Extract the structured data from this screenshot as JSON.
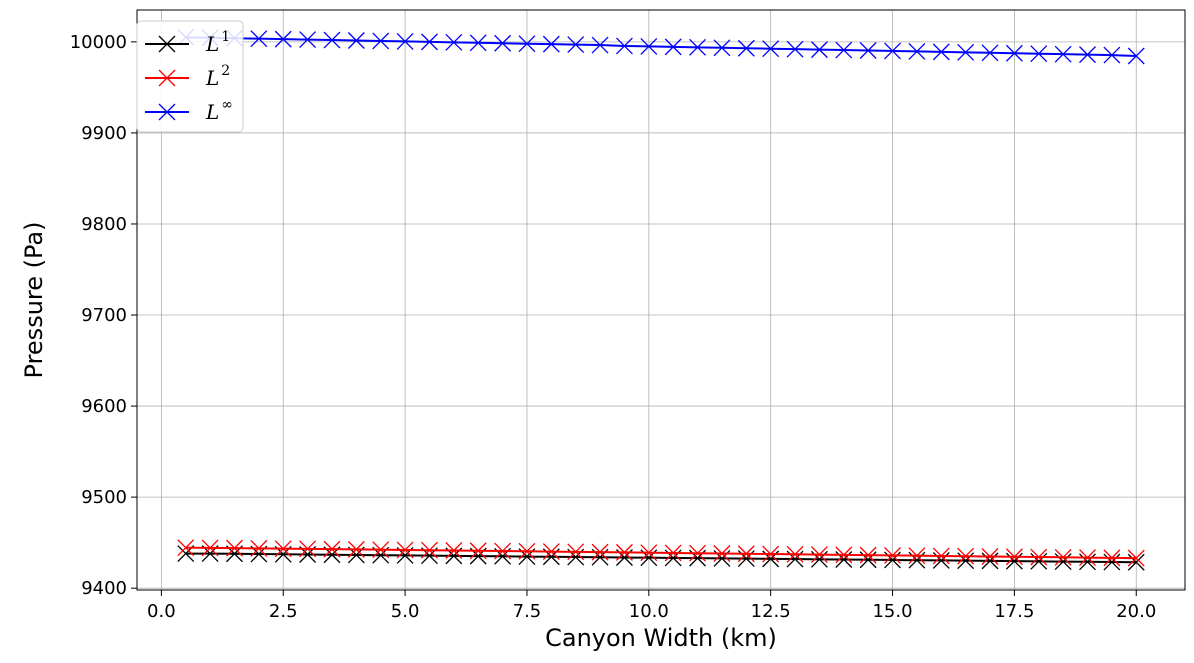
{
  "chart_data": {
    "type": "line",
    "xlabel": "Canyon Width (km)",
    "ylabel": "Pressure (Pa)",
    "xlim": [
      -0.5,
      21.0
    ],
    "ylim": [
      9398,
      10035
    ],
    "x_ticks": [
      0.0,
      2.5,
      5.0,
      7.5,
      10.0,
      12.5,
      15.0,
      17.5,
      20.0
    ],
    "x_tick_labels": [
      "0.0",
      "2.5",
      "5.0",
      "7.5",
      "10.0",
      "12.5",
      "15.0",
      "17.5",
      "20.0"
    ],
    "y_ticks": [
      9400,
      9500,
      9600,
      9700,
      9800,
      9900,
      10000
    ],
    "y_tick_labels": [
      "9400",
      "9500",
      "9600",
      "9700",
      "9800",
      "9900",
      "10000"
    ],
    "grid": true,
    "legend_position": "top-left",
    "marker": "x",
    "x": [
      0.5,
      1.0,
      1.5,
      2.0,
      2.5,
      3.0,
      3.5,
      4.0,
      4.5,
      5.0,
      5.5,
      6.0,
      6.5,
      7.0,
      7.5,
      8.0,
      8.5,
      9.0,
      9.5,
      10.0,
      10.5,
      11.0,
      11.5,
      12.0,
      12.5,
      13.0,
      13.5,
      14.0,
      14.5,
      15.0,
      15.5,
      16.0,
      16.5,
      17.0,
      17.5,
      18.0,
      18.5,
      19.0,
      19.5,
      20.0
    ],
    "series": [
      {
        "name": "L",
        "sup": "1",
        "color": "#000000",
        "values": [
          9438,
          9438,
          9437.8,
          9437.5,
          9437.2,
          9437,
          9436.7,
          9436.5,
          9436.2,
          9436,
          9435.7,
          9435.5,
          9435.2,
          9435,
          9434.7,
          9434.5,
          9434.2,
          9434,
          9433.7,
          9433.5,
          9433.2,
          9433,
          9432.7,
          9432.5,
          9432.2,
          9432,
          9431.7,
          9431.5,
          9431.2,
          9431,
          9430.7,
          9430.5,
          9430.2,
          9430,
          9429.7,
          9429.5,
          9429.2,
          9429,
          9428.7,
          9428.5
        ]
      },
      {
        "name": "L",
        "sup": "2",
        "color": "#ff0000",
        "values": [
          9444.5,
          9444.2,
          9444,
          9443.7,
          9443.4,
          9443.2,
          9442.9,
          9442.6,
          9442.3,
          9442,
          9441.7,
          9441.4,
          9441.1,
          9440.8,
          9440.5,
          9440.2,
          9439.9,
          9439.6,
          9439.3,
          9439,
          9438.7,
          9438.4,
          9438.1,
          9437.8,
          9437.5,
          9437.2,
          9436.9,
          9436.6,
          9436.3,
          9436,
          9435.7,
          9435.4,
          9435.1,
          9434.8,
          9434.5,
          9434.2,
          9433.9,
          9433.6,
          9433.3,
          9433
        ]
      },
      {
        "name": "L",
        "sup": "∞",
        "color": "#0000ff",
        "values": [
          10005,
          10004.5,
          10004,
          10003.5,
          10003,
          10002.5,
          10002,
          10001.5,
          10001,
          10000.5,
          10000,
          9999.5,
          9999,
          9998.5,
          9998,
          9997.5,
          9997,
          9996.5,
          9995.5,
          9995,
          9994.5,
          9994,
          9993.5,
          9993,
          9992.5,
          9992,
          9991.5,
          9991,
          9990.5,
          9990,
          9989.5,
          9989,
          9988.5,
          9988,
          9987.5,
          9987,
          9986.5,
          9986,
          9985.5,
          9984.5
        ]
      }
    ]
  }
}
